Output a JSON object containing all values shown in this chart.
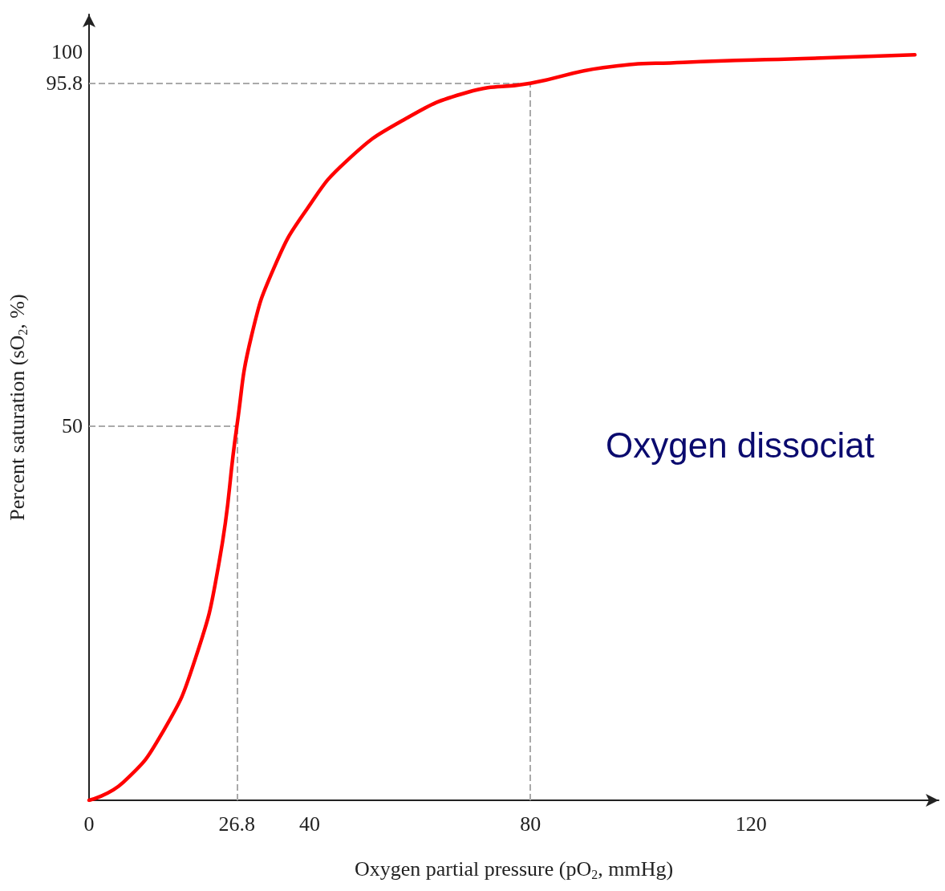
{
  "chart_data": {
    "type": "line",
    "xlabel": "Oxygen partial pressure (pO$_{2}$, mmHg)",
    "ylabel": "Percent saturation (sO$_{2}$, %)",
    "annotations": [
      "Oxygen dissociat"
    ],
    "x": [
      0,
      6.2,
      13.5,
      19.3,
      23.6,
      26.8,
      29.4,
      33.8,
      39.6,
      46.8,
      57,
      68.6,
      80,
      93.2,
      107.7,
      129.4,
      149.7
    ],
    "series": [
      {
        "color": "#ff0000",
        "values": [
          0,
          2.4,
          9.3,
          19,
          31.9,
          50,
          61.9,
          71.6,
          79.1,
          85.5,
          90.9,
          94.6,
          95.8,
          97.9,
          98.6,
          99.1,
          99.6
        ]
      }
    ],
    "xlim": [
      0,
      154
    ],
    "ylim": [
      0,
      105
    ],
    "xticks": [
      0,
      26.8,
      40,
      80,
      120
    ],
    "yticks": [
      50,
      95.8,
      100
    ],
    "ref_lines": [
      {
        "axis": "x",
        "value": 26.8,
        "color": "#aaaaaa",
        "line_style": "dashed"
      },
      {
        "axis": "y",
        "value": 50,
        "color": "#aaaaaa",
        "line_style": "dashed"
      },
      {
        "axis": "x",
        "value": 80,
        "color": "#aaaaaa",
        "line_style": "dashed"
      },
      {
        "axis": "y",
        "value": 95.8,
        "color": "#aaaaaa",
        "line_style": "dashed"
      }
    ],
    "grid": false,
    "marker": "none",
    "line_style": "solid"
  }
}
